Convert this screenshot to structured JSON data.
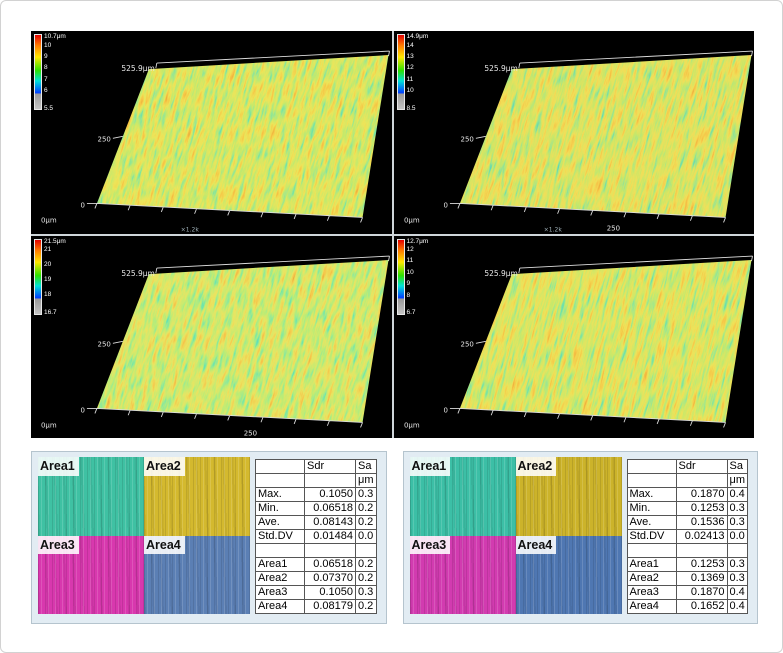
{
  "window": {
    "background": "#ffffff",
    "border_color": "#d2d2d2",
    "panel_background": "#000000"
  },
  "colorbar_gradient": [
    "#e40000",
    "#ff7a00",
    "#ffe800",
    "#2ce000",
    "#00e2d8",
    "#0040ff",
    "#9a9a9a"
  ],
  "surface_panels": [
    {
      "name": "top-left",
      "scale_max": "10.7μm",
      "scale_ticks": [
        "10",
        "9",
        "8",
        "7",
        "6"
      ],
      "scale_min": "5.5",
      "width_label": "525.9μm",
      "y_mid_label": "250",
      "y_zero_label": "0",
      "origin_label": "0μm",
      "x_mid_label": "",
      "annotation": "×1.2k"
    },
    {
      "name": "top-right",
      "scale_max": "14.9μm",
      "scale_ticks": [
        "14",
        "13",
        "12",
        "11",
        "10"
      ],
      "scale_min": "8.5",
      "width_label": "525.9μm",
      "y_mid_label": "250",
      "y_zero_label": "0",
      "origin_label": "0μm",
      "x_mid_label": "250",
      "annotation": "×1.2k"
    },
    {
      "name": "bottom-left",
      "scale_max": "21.5μm",
      "scale_ticks": [
        "21",
        "20",
        "19",
        "18"
      ],
      "scale_min": "16.7",
      "width_label": "525.9μm",
      "y_mid_label": "250",
      "y_zero_label": "0",
      "origin_label": "0μm",
      "x_mid_label": "250",
      "annotation": ""
    },
    {
      "name": "bottom-right",
      "scale_max": "12.7μm",
      "scale_ticks": [
        "12",
        "11",
        "10",
        "9",
        "8"
      ],
      "scale_min": "6.7",
      "width_label": "525.9μm",
      "y_mid_label": "250",
      "y_zero_label": "0",
      "origin_label": "0μm",
      "x_mid_label": "",
      "annotation": ""
    }
  ],
  "analysis_panels": [
    {
      "name": "left",
      "areas": [
        {
          "label": "Area1",
          "color": "#3fc1a3"
        },
        {
          "label": "Area2",
          "color": "#d4b92e"
        },
        {
          "label": "Area3",
          "color": "#d838ae"
        },
        {
          "label": "Area4",
          "color": "#5b7fb4"
        }
      ],
      "table": {
        "rows": [
          [
            "",
            "Sdr",
            "Sa"
          ],
          [
            "",
            "",
            "μm"
          ],
          [
            "Max.",
            "0.1050",
            "0.3"
          ],
          [
            "Min.",
            "0.06518",
            "0.2"
          ],
          [
            "Ave.",
            "0.08143",
            "0.2"
          ],
          [
            "Std.DV",
            "0.01484",
            "0.0"
          ],
          [
            "",
            "",
            ""
          ],
          [
            "Area1",
            "0.06518",
            "0.2"
          ],
          [
            "Area2",
            "0.07370",
            "0.2"
          ],
          [
            "Area3",
            "0.1050",
            "0.3"
          ],
          [
            "Area4",
            "0.08179",
            "0.2"
          ]
        ]
      }
    },
    {
      "name": "right",
      "areas": [
        {
          "label": "Area1",
          "color": "#3cbfa6"
        },
        {
          "label": "Area2",
          "color": "#ccb32a"
        },
        {
          "label": "Area3",
          "color": "#d23bb0"
        },
        {
          "label": "Area4",
          "color": "#4f77b2"
        }
      ],
      "table": {
        "rows": [
          [
            "",
            "Sdr",
            "Sa"
          ],
          [
            "",
            "",
            "μm"
          ],
          [
            "Max.",
            "0.1870",
            "0.4"
          ],
          [
            "Min.",
            "0.1253",
            "0.3"
          ],
          [
            "Ave.",
            "0.1536",
            "0.3"
          ],
          [
            "Std.DV",
            "0.02413",
            "0.0"
          ],
          [
            "",
            "",
            ""
          ],
          [
            "Area1",
            "0.1253",
            "0.3"
          ],
          [
            "Area2",
            "0.1369",
            "0.3"
          ],
          [
            "Area3",
            "0.1870",
            "0.4"
          ],
          [
            "Area4",
            "0.1652",
            "0.4"
          ]
        ]
      }
    }
  ]
}
